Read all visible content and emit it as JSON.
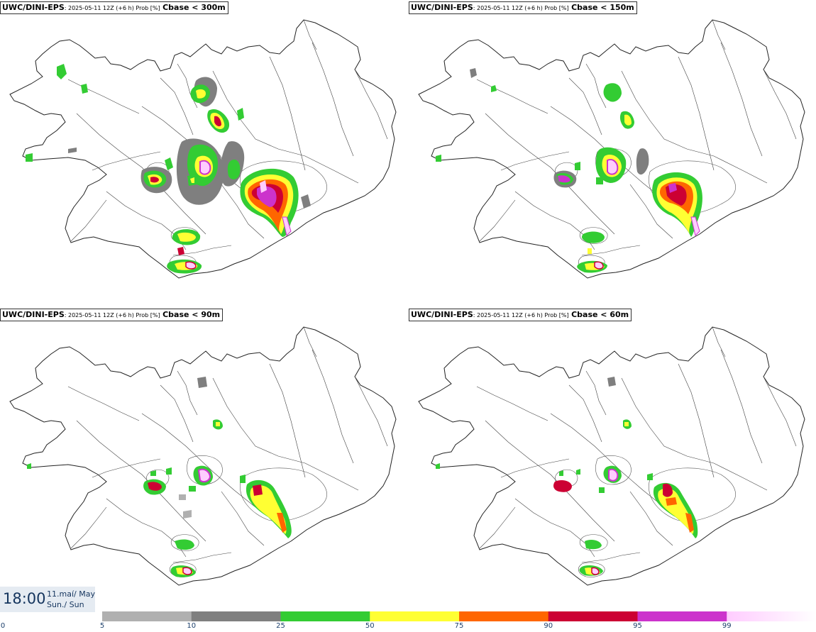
{
  "panels": [
    {
      "model": "UWC/DINI-EPS",
      "meta": ": 2025-05-11 12Z (+6 h) Prob [%]",
      "variable": "Cbase < 300m"
    },
    {
      "model": "UWC/DINI-EPS",
      "meta": ": 2025-05-11 12Z (+6 h) Prob [%]",
      "variable": "Cbase < 150m"
    },
    {
      "model": "UWC/DINI-EPS",
      "meta": ": 2025-05-11 12Z (+6 h) Prob [%]",
      "variable": "Cbase < 90m"
    },
    {
      "model": "UWC/DINI-EPS",
      "meta": ": 2025-05-11 12Z (+6 h) Prob [%]",
      "variable": "Cbase < 60m"
    }
  ],
  "valid_time": {
    "clock": "18:00",
    "date_line1": "11.maí/ May",
    "date_line2": "Sun./ Sun"
  },
  "legend": {
    "ticks": [
      "0",
      "5",
      "10",
      "25",
      "50",
      "75",
      "90",
      "95",
      "99"
    ],
    "bins": [
      {
        "from": "5",
        "to": "10",
        "color": "#b0b0b0"
      },
      {
        "from": "10",
        "to": "25",
        "color": "#7f7f7f"
      },
      {
        "from": "25",
        "to": "50",
        "color": "#33cc33"
      },
      {
        "from": "50",
        "to": "75",
        "color": "#ffff33"
      },
      {
        "from": "75",
        "to": "90",
        "color": "#ff6600"
      },
      {
        "from": "90",
        "to": "95",
        "color": "#cc0033"
      },
      {
        "from": "95",
        "to": "99",
        "color": "#cc33cc"
      },
      {
        "from": "99",
        "to": "",
        "color": "#ffccff"
      }
    ]
  }
}
